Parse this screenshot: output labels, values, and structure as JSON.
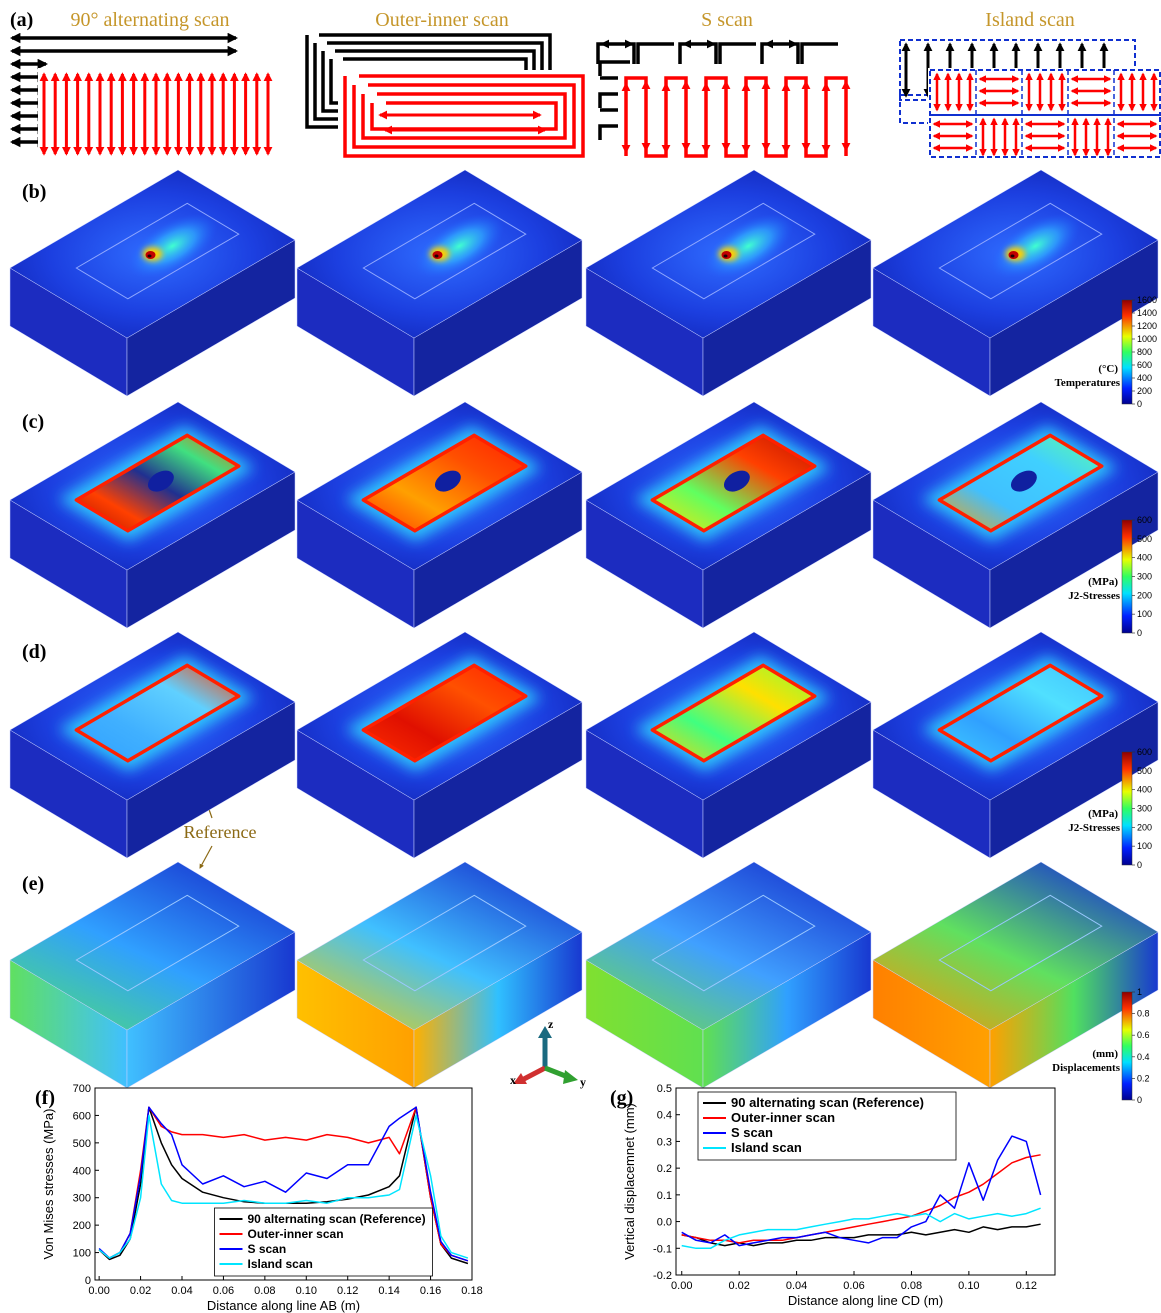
{
  "figure": {
    "panel_a": {
      "label": "(a)",
      "scans": [
        "90° alternating scan",
        "Outer-inner scan",
        "S scan",
        "Island scan"
      ]
    },
    "panel_labels": [
      "(b)",
      "(c)",
      "(d)",
      "(e)"
    ],
    "reference": "Reference",
    "triad": [
      "z",
      "x",
      "y"
    ],
    "colorbars": [
      {
        "unit": "(°C)",
        "name": "Temperatures",
        "lim": [
          0,
          1600
        ],
        "ticks": [
          0,
          200,
          400,
          600,
          800,
          1000,
          1200,
          1400,
          1600
        ]
      },
      {
        "unit": "(MPa)",
        "name": "J2-Stresses",
        "lim": [
          0,
          600
        ],
        "ticks": [
          0,
          100,
          200,
          300,
          400,
          500,
          600
        ]
      },
      {
        "unit": "(MPa)",
        "name": "J2-Stresses",
        "lim": [
          0,
          600
        ],
        "ticks": [
          0,
          100,
          200,
          300,
          400,
          500,
          600
        ]
      },
      {
        "unit": "(mm)",
        "name": "Displacements",
        "lim": [
          0,
          1
        ],
        "ticks": [
          0,
          0.2,
          0.4,
          0.6,
          0.8,
          1
        ]
      }
    ]
  },
  "chart_data": [
    {
      "type": "line",
      "panel_label": "(f)",
      "xlabel": "Distance along line AB (m)",
      "ylabel": "Von Mises stresses (MPa)",
      "xlim": [
        -0.002,
        0.18
      ],
      "ylim": [
        0,
        700
      ],
      "xticks": [
        {
          "value": 0,
          "label": "0.00"
        },
        {
          "value": 0.02,
          "label": "0.02"
        },
        {
          "value": 0.04,
          "label": "0.04"
        },
        {
          "value": 0.06,
          "label": "0.06"
        },
        {
          "value": 0.08,
          "label": "0.08"
        },
        {
          "value": 0.1,
          "label": "0.10"
        },
        {
          "value": 0.12,
          "label": "0.12"
        },
        {
          "value": 0.14,
          "label": "0.14"
        },
        {
          "value": 0.16,
          "label": "0.16"
        },
        {
          "value": 0.18,
          "label": "0.18"
        }
      ],
      "yticks": [
        0,
        100,
        200,
        300,
        400,
        500,
        600,
        700
      ],
      "legend": "lower center",
      "x": [
        0,
        0.005,
        0.01,
        0.015,
        0.02,
        0.024,
        0.03,
        0.035,
        0.04,
        0.05,
        0.06,
        0.07,
        0.08,
        0.09,
        0.1,
        0.11,
        0.12,
        0.13,
        0.14,
        0.145,
        0.153,
        0.16,
        0.165,
        0.17,
        0.178
      ],
      "series": [
        {
          "name": "90 alternating scan (Reference)",
          "color": "#000000",
          "values": [
            110,
            75,
            90,
            150,
            350,
            630,
            500,
            420,
            370,
            320,
            300,
            285,
            280,
            280,
            280,
            285,
            295,
            310,
            340,
            380,
            630,
            300,
            130,
            80,
            60
          ]
        },
        {
          "name": "Outer-inner scan",
          "color": "#ff0000",
          "values": [
            110,
            80,
            100,
            170,
            400,
            630,
            560,
            540,
            530,
            530,
            520,
            530,
            510,
            520,
            510,
            530,
            520,
            500,
            520,
            460,
            630,
            300,
            130,
            90,
            70
          ]
        },
        {
          "name": "S scan",
          "color": "#0000ff",
          "values": [
            115,
            80,
            100,
            170,
            380,
            630,
            570,
            530,
            420,
            350,
            380,
            340,
            360,
            320,
            390,
            370,
            420,
            420,
            560,
            590,
            630,
            320,
            140,
            90,
            70
          ]
        },
        {
          "name": "Island scan",
          "color": "#00e5ff",
          "values": [
            110,
            80,
            100,
            150,
            300,
            600,
            350,
            290,
            280,
            280,
            280,
            290,
            280,
            280,
            290,
            280,
            300,
            300,
            310,
            330,
            600,
            380,
            160,
            100,
            80
          ]
        }
      ]
    },
    {
      "type": "line",
      "panel_label": "(g)",
      "xlabel": "Distance along line CD (m)",
      "ylabel": "Vertical displacemnet (mm)",
      "xlim": [
        -0.002,
        0.13
      ],
      "ylim": [
        -0.2,
        0.5
      ],
      "xticks": [
        {
          "value": 0,
          "label": "0.00"
        },
        {
          "value": 0.02,
          "label": "0.02"
        },
        {
          "value": 0.04,
          "label": "0.04"
        },
        {
          "value": 0.06,
          "label": "0.06"
        },
        {
          "value": 0.08,
          "label": "0.08"
        },
        {
          "value": 0.1,
          "label": "0.10"
        },
        {
          "value": 0.12,
          "label": "0.12"
        }
      ],
      "yticks": [
        -0.2,
        -0.1,
        {
          "value": 0,
          "label": "0.0"
        },
        0.1,
        0.2,
        0.3,
        0.4,
        0.5
      ],
      "legend": "upper left",
      "x": [
        0,
        0.005,
        0.01,
        0.015,
        0.02,
        0.025,
        0.03,
        0.035,
        0.04,
        0.045,
        0.05,
        0.055,
        0.06,
        0.065,
        0.07,
        0.075,
        0.08,
        0.085,
        0.09,
        0.095,
        0.1,
        0.105,
        0.11,
        0.115,
        0.12,
        0.125
      ],
      "series": [
        {
          "name": "90 alternating scan (Reference)",
          "color": "#000000",
          "values": [
            -0.05,
            -0.06,
            -0.08,
            -0.09,
            -0.08,
            -0.09,
            -0.08,
            -0.08,
            -0.07,
            -0.07,
            -0.06,
            -0.06,
            -0.06,
            -0.05,
            -0.05,
            -0.05,
            -0.04,
            -0.05,
            -0.04,
            -0.03,
            -0.04,
            -0.02,
            -0.03,
            -0.02,
            -0.02,
            -0.01
          ]
        },
        {
          "name": "Outer-inner scan",
          "color": "#ff0000",
          "values": [
            -0.05,
            -0.06,
            -0.07,
            -0.07,
            -0.08,
            -0.07,
            -0.07,
            -0.07,
            -0.06,
            -0.05,
            -0.04,
            -0.03,
            -0.02,
            -0.01,
            0.0,
            0.01,
            0.02,
            0.04,
            0.06,
            0.09,
            0.11,
            0.14,
            0.18,
            0.22,
            0.24,
            0.25
          ]
        },
        {
          "name": "S scan",
          "color": "#0000ff",
          "values": [
            -0.04,
            -0.07,
            -0.08,
            -0.05,
            -0.09,
            -0.08,
            -0.07,
            -0.06,
            -0.06,
            -0.05,
            -0.04,
            -0.06,
            -0.07,
            -0.08,
            -0.06,
            -0.06,
            -0.02,
            0.0,
            0.1,
            0.05,
            0.22,
            0.08,
            0.23,
            0.32,
            0.3,
            0.1
          ]
        },
        {
          "name": "Island scan",
          "color": "#00e5ff",
          "values": [
            -0.09,
            -0.1,
            -0.1,
            -0.07,
            -0.05,
            -0.04,
            -0.03,
            -0.03,
            -0.03,
            -0.02,
            -0.01,
            0.0,
            0.01,
            0.01,
            0.02,
            0.03,
            0.02,
            0.03,
            0.0,
            0.03,
            0.01,
            0.02,
            0.03,
            0.02,
            0.03,
            0.05
          ]
        }
      ]
    }
  ]
}
